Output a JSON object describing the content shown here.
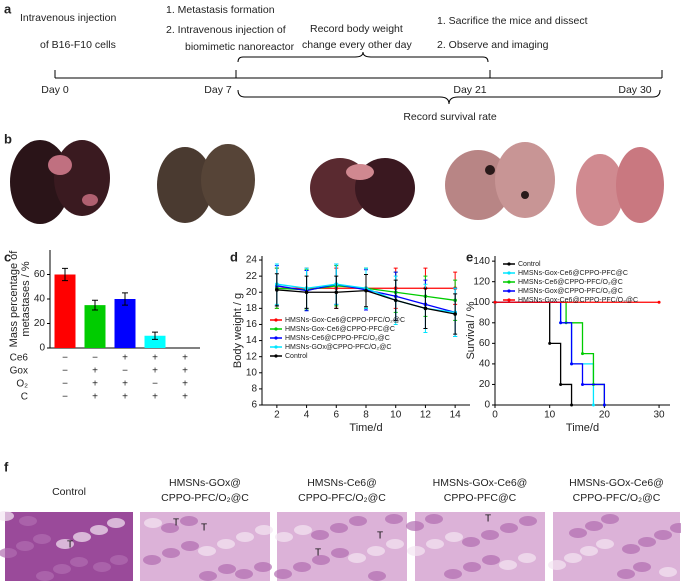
{
  "panel_labels": [
    "a",
    "b",
    "c",
    "d",
    "e",
    "f"
  ],
  "timeline": {
    "steps": [
      {
        "lines": [
          "Intravenous injection",
          "of B16-F10 cells"
        ]
      },
      {
        "lines": [
          "1. Metastasis formation",
          "2. Intravenous injection of",
          "biomimetic nanoreactor"
        ]
      },
      {
        "lines": [
          "Record body weight",
          "change every other day"
        ]
      },
      {
        "lines": [
          "1. Sacrifice the mice and dissect",
          "2. Observe and imaging"
        ]
      }
    ],
    "days": [
      "Day 0",
      "Day 7",
      "Day 21",
      "Day 30"
    ],
    "survival_label": "Record survival rate"
  },
  "chart_data": [
    {
      "type": "bar",
      "ylabel_lines": [
        "Mass percentage of",
        "metastases / %"
      ],
      "categories": [
        null,
        null,
        null,
        null,
        null
      ],
      "values": [
        60,
        35,
        40,
        10,
        0
      ],
      "errors": [
        5,
        4,
        5,
        3,
        0
      ],
      "colors": [
        "#ff0000",
        "#00cc00",
        "#0000ff",
        "#00ffff",
        "#000000"
      ],
      "ylim": [
        0,
        80
      ],
      "yticks": [
        0,
        20,
        40,
        60
      ],
      "condition_table": [
        {
          "name": "Ce6",
          "signs": [
            "−",
            "−",
            "+",
            "+",
            "+"
          ]
        },
        {
          "name": "Gox",
          "signs": [
            "−",
            "+",
            "−",
            "+",
            "+"
          ]
        },
        {
          "name": "O₂",
          "signs": [
            "−",
            "+",
            "+",
            "−",
            "+"
          ]
        },
        {
          "name": "C",
          "signs": [
            "−",
            "+",
            "+",
            "+",
            "+"
          ]
        }
      ]
    },
    {
      "type": "line",
      "xlabel": "Time/d",
      "ylabel": "Body weight / g",
      "x": [
        2,
        4,
        6,
        8,
        10,
        12,
        14
      ],
      "series": [
        {
          "name": "HMSNs-Gox-Ce6@CPPO-PFC/O₂@C",
          "color": "#ff0000",
          "values": [
            20.5,
            20.5,
            20.5,
            20.5,
            20.5,
            20.5,
            20.5
          ],
          "errors": [
            2.5,
            2.5,
            2.5,
            2.5,
            2.5,
            2.5,
            2
          ]
        },
        {
          "name": "HMSNs-Gox-Ce6@CPPO-PFC@C",
          "color": "#00cc00",
          "values": [
            20.5,
            20.3,
            20.8,
            20.5,
            20,
            19.5,
            19
          ],
          "errors": [
            2.5,
            2.5,
            2.5,
            2.5,
            2.5,
            2.5,
            2.5
          ]
        },
        {
          "name": "HMSNs-Ce6@CPPO-PFC/O₂@C",
          "color": "#0000ff",
          "values": [
            20.8,
            20.2,
            21,
            20.3,
            19.5,
            18.5,
            17.5
          ],
          "errors": [
            2.5,
            2.5,
            2.5,
            2.5,
            3,
            3,
            3
          ]
        },
        {
          "name": "HMSNs-GOx@CPPO-PFC/O₂@C",
          "color": "#00e5ff",
          "values": [
            21,
            20.5,
            21,
            20.5,
            19,
            18,
            17.5
          ],
          "errors": [
            2.5,
            2.5,
            2.5,
            2.5,
            3,
            3,
            3
          ]
        },
        {
          "name": "Control",
          "color": "#000000",
          "values": [
            20.3,
            20,
            20,
            20.2,
            19,
            18,
            17.3
          ],
          "errors": [
            2,
            2,
            2,
            2,
            2.5,
            2.5,
            2.5
          ]
        }
      ],
      "xlim": [
        1,
        15
      ],
      "xticks": [
        2,
        4,
        6,
        8,
        10,
        12,
        14
      ],
      "ylim": [
        6,
        24.5
      ],
      "yticks": [
        6,
        8,
        10,
        12,
        14,
        16,
        18,
        20,
        22,
        24
      ],
      "legend": "lower left"
    },
    {
      "type": "step",
      "xlabel": "Time/d",
      "ylabel": "Survival / %",
      "series": [
        {
          "name": "Control",
          "color": "#000000",
          "x": [
            0,
            10,
            12,
            14
          ],
          "values": [
            100,
            60,
            20,
            0
          ]
        },
        {
          "name": "HMSNs-Gox-Ce6@CPPO-PFC@C",
          "color": "#00e5ff",
          "x": [
            0,
            12,
            14,
            18
          ],
          "values": [
            100,
            80,
            40,
            0
          ]
        },
        {
          "name": "HMSNs-Ce6@CPPO-PFC/O₂@C",
          "color": "#00cc00",
          "x": [
            0,
            13,
            16,
            18,
            20
          ],
          "values": [
            100,
            80,
            50,
            20,
            0
          ]
        },
        {
          "name": "HMSNs-Gox@CPPO-PFC/O₂@C",
          "color": "#0000ff",
          "x": [
            0,
            12,
            14,
            16,
            20
          ],
          "values": [
            100,
            80,
            40,
            20,
            0
          ]
        },
        {
          "name": "HMSNs-Gox-Ce6@CPPO-PFC/O₂@C",
          "color": "#ff0000",
          "x": [
            0,
            30
          ],
          "values": [
            100,
            100
          ]
        }
      ],
      "xlim": [
        0,
        32
      ],
      "xticks": [
        0,
        10,
        20,
        30
      ],
      "ylim": [
        0,
        145
      ],
      "yticks": [
        0,
        20,
        40,
        60,
        80,
        100,
        120,
        140
      ],
      "legend": "upper left"
    }
  ],
  "histology": [
    {
      "label_lines": [
        "Control"
      ],
      "marks": [
        "T"
      ]
    },
    {
      "label_lines": [
        "HMSNs-GOx@",
        "CPPO-PFC/O₂@C"
      ],
      "marks": [
        "T",
        "T"
      ]
    },
    {
      "label_lines": [
        "HMSNs-Ce6@",
        "CPPO-PFC/O₂@C"
      ],
      "marks": [
        "T",
        "T"
      ]
    },
    {
      "label_lines": [
        "HMSNs-GOx-Ce6@",
        "CPPO-PFC@C"
      ],
      "marks": [
        "T"
      ]
    },
    {
      "label_lines": [
        "HMSNs-GOx-Ce6@",
        "CPPO-PFC/O₂@C"
      ],
      "marks": []
    }
  ]
}
